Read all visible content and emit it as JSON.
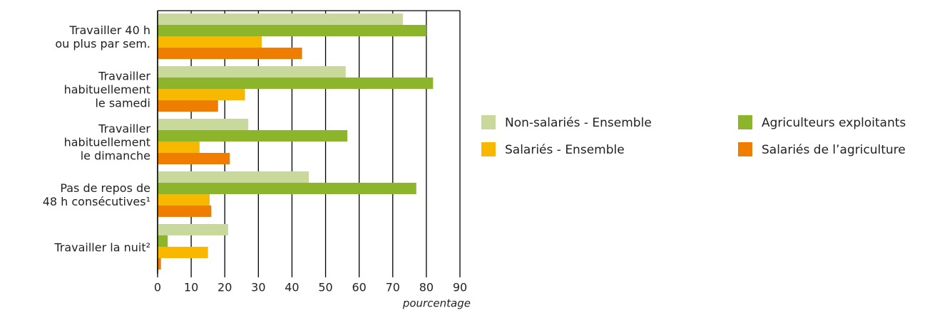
{
  "chart_data": {
    "type": "bar",
    "orientation": "horizontal",
    "categories": [
      "Travailler 40 h\nou plus par sem.",
      "Travailler\nhabituellement\nle samedi",
      "Travailler\nhabituellement\nle dimanche",
      "Pas de repos de\n48 h consécutives¹",
      "Travailler la nuit²"
    ],
    "series": [
      {
        "name": "Non-salariés - Ensemble",
        "color": "#c9d99b",
        "values": [
          73,
          56,
          27,
          45,
          21
        ]
      },
      {
        "name": "Agriculteurs exploitants",
        "color": "#8db52b",
        "values": [
          80,
          82,
          56.5,
          77,
          3
        ]
      },
      {
        "name": "Salariés - Ensemble",
        "color": "#f9b800",
        "values": [
          31,
          26,
          12.5,
          15.5,
          15
        ]
      },
      {
        "name": "Salariés de l’agriculture",
        "color": "#ee7d00",
        "values": [
          43,
          18,
          21.5,
          16,
          1
        ]
      }
    ],
    "xlim": [
      0,
      90
    ],
    "xticks": [
      0,
      10,
      20,
      30,
      40,
      50,
      60,
      70,
      80,
      90
    ],
    "xlabel": "pourcentage",
    "grid": true,
    "legend": "right"
  }
}
